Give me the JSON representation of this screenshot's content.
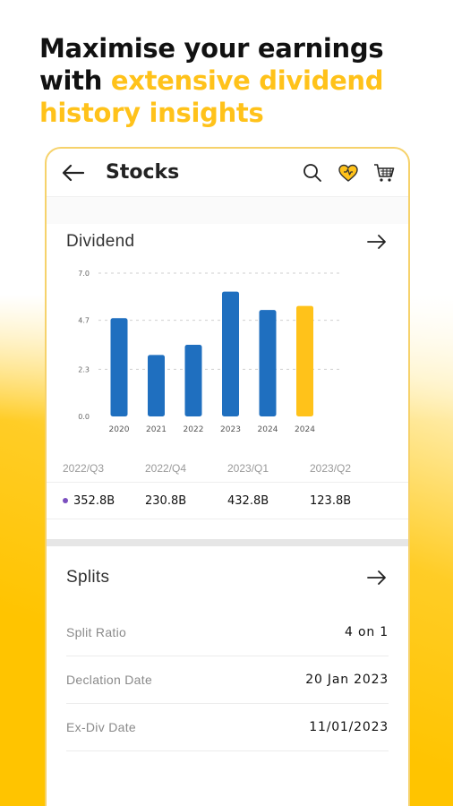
{
  "headline": {
    "line1": "Maximise your earnings",
    "line2_plain": "with ",
    "line2_highlight": "extensive dividend",
    "line3_highlight": "history insights"
  },
  "appbar": {
    "title": "Stocks",
    "icons": [
      "back-arrow-icon",
      "search-icon",
      "heart-icon",
      "cart-icon"
    ]
  },
  "dividend": {
    "title": "Dividend"
  },
  "chart_data": {
    "type": "bar",
    "categories": [
      "2020",
      "2021",
      "2022",
      "2023",
      "2024",
      "2024"
    ],
    "values": [
      4.8,
      3.0,
      3.5,
      6.1,
      5.2,
      5.4
    ],
    "bar_colors": [
      "#1f6fbf",
      "#1f6fbf",
      "#1f6fbf",
      "#1f6fbf",
      "#1f6fbf",
      "#ffc21a"
    ],
    "yticks": [
      "0.0",
      "2.3",
      "4.7",
      "7.0"
    ],
    "ylim": [
      0,
      7.0
    ],
    "grid": true
  },
  "quarters": {
    "labels": [
      "2022/Q3",
      "2022/Q4",
      "2023/Q1",
      "2023/Q2"
    ],
    "values": [
      "352.8B",
      "230.8B",
      "432.8B",
      "123.8B"
    ]
  },
  "splits": {
    "title": "Splits",
    "rows": [
      {
        "label": "Split Ratio",
        "value": "4 on 1"
      },
      {
        "label": "Declation Date",
        "value": "20 Jan 2023"
      },
      {
        "label": "Ex-Div Date",
        "value": "11/01/2023"
      }
    ]
  },
  "colors": {
    "accent": "#ffc21a",
    "bar_blue": "#1f6fbf",
    "dot_purple": "#7b4fbf"
  }
}
